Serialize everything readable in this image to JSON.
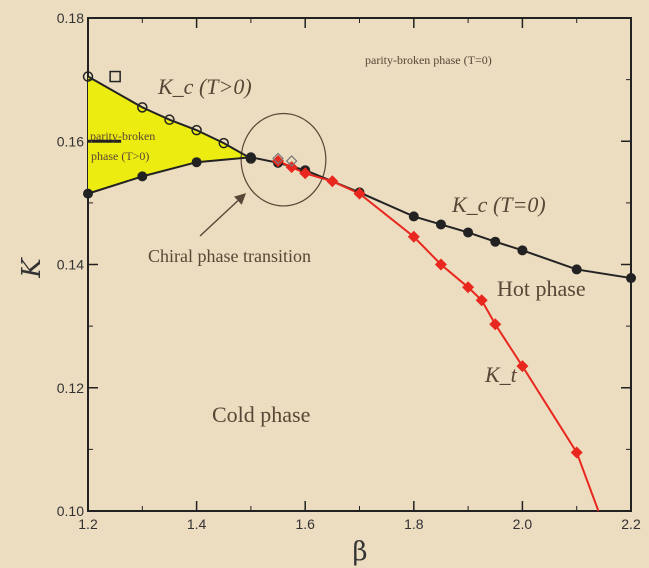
{
  "chart_data": {
    "type": "line",
    "title": "",
    "xlabel": "β",
    "ylabel": "K",
    "xlim": [
      1.2,
      2.2
    ],
    "ylim": [
      0.1,
      0.18
    ],
    "xticks": [
      "1.2",
      "1.4",
      "1.6",
      "1.8",
      "2.0",
      "2.2"
    ],
    "yticks": [
      "0.10",
      "0.12",
      "0.14",
      "0.16",
      "0.18"
    ],
    "grid": false,
    "colors": {
      "background": "#ecdcc0",
      "kc_T0": "#222222",
      "kt": "#e8281e",
      "shaded_region": "#ecec10",
      "annotation": "#5a4636"
    },
    "series": [
      {
        "key": "kc_T0",
        "marker": "filled-circle",
        "x": [
          1.2,
          1.3,
          1.4,
          1.5,
          1.55,
          1.6,
          1.7,
          1.8,
          1.85,
          1.9,
          1.95,
          2.0,
          2.1,
          2.2
        ],
        "y": [
          0.1515,
          0.1543,
          0.1566,
          0.1574,
          0.1565,
          0.1553,
          0.1517,
          0.1478,
          0.1465,
          0.1452,
          0.1437,
          0.1423,
          0.1392,
          0.1378
        ]
      },
      {
        "key": "kc_Tpos",
        "marker": "open-circle",
        "x": [
          1.2,
          1.3,
          1.35,
          1.4,
          1.45,
          1.5
        ],
        "y": [
          0.1705,
          0.1655,
          0.1635,
          0.1618,
          0.1597,
          0.1572
        ]
      },
      {
        "key": "kt",
        "marker": "diamond",
        "x": [
          1.55,
          1.575,
          1.6,
          1.65,
          1.7,
          1.8,
          1.85,
          1.9,
          1.925,
          1.95,
          2.0,
          2.1,
          2.14
        ],
        "y": [
          0.1568,
          0.1558,
          0.1548,
          0.1535,
          0.1515,
          0.1445,
          0.14,
          0.1363,
          0.1342,
          0.1303,
          0.1235,
          0.1095,
          0.1
        ]
      }
    ],
    "extra_points": [
      {
        "marker": "open-square",
        "x": 1.25,
        "y": 0.1705
      },
      {
        "marker": "dash",
        "x": 1.25,
        "y": 0.16
      },
      {
        "marker": "open-diamond",
        "x": 1.55,
        "y": 0.1572
      },
      {
        "marker": "open-diamond",
        "x": 1.575,
        "y": 0.1568
      }
    ],
    "annotations": {
      "pb_top": "parity-broken phase (T=0)",
      "pb_left_line1": "parity-broken",
      "pb_left_line2": "phase (T>0)",
      "chiral": "Chiral phase transition",
      "hot": "Hot phase",
      "cold": "Cold phase",
      "kc_Tpos_label": "K_c (T>0)",
      "kc_T0_label": "K_c (T=0)",
      "kt_label": "K_t"
    },
    "circle": {
      "x": 1.56,
      "y": 0.157,
      "r_x": 0.078,
      "r_y": 0.0075
    }
  }
}
